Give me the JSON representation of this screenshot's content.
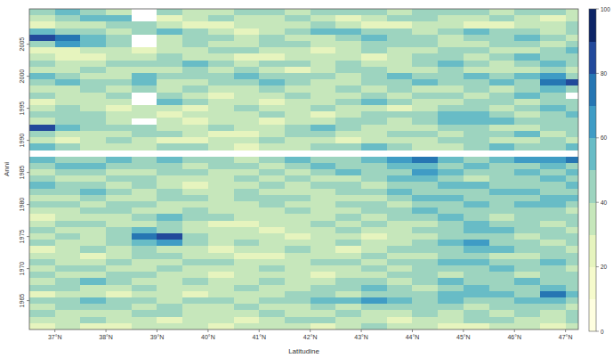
{
  "chart_data": {
    "type": "heatmap",
    "x_label": "Latitudine",
    "y_label": "Anni",
    "x": [
      36.75,
      37.25,
      37.75,
      38.25,
      38.75,
      39.25,
      39.75,
      40.25,
      40.75,
      41.25,
      41.75,
      42.25,
      42.75,
      43.25,
      43.75,
      44.25,
      44.75,
      45.25,
      45.75,
      46.25,
      46.75,
      47.25
    ],
    "y": [
      2010,
      2009,
      2008,
      2007,
      2006,
      2005,
      2004,
      2003,
      2002,
      2001,
      2000,
      1999,
      1998,
      1997,
      1996,
      1995,
      1994,
      1993,
      1992,
      1991,
      1990,
      1989,
      1988,
      1987,
      1986,
      1985,
      1984,
      1983,
      1982,
      1981,
      1980,
      1979,
      1978,
      1977,
      1976,
      1975,
      1974,
      1973,
      1972,
      1971,
      1970,
      1969,
      1968,
      1967,
      1966,
      1965,
      1964,
      1963,
      1962,
      1961
    ],
    "values": [
      [
        45,
        55,
        45,
        35,
        null,
        45,
        35,
        35,
        45,
        45,
        35,
        45,
        45,
        45,
        35,
        45,
        45,
        45,
        35,
        45,
        45,
        35
      ],
      [
        35,
        45,
        55,
        55,
        null,
        25,
        35,
        45,
        35,
        35,
        45,
        35,
        25,
        35,
        45,
        45,
        35,
        35,
        45,
        35,
        25,
        35
      ],
      [
        25,
        35,
        35,
        45,
        45,
        35,
        25,
        25,
        35,
        35,
        35,
        45,
        35,
        25,
        25,
        35,
        35,
        25,
        25,
        35,
        35,
        45
      ],
      [
        55,
        45,
        45,
        35,
        45,
        55,
        45,
        35,
        25,
        35,
        45,
        55,
        55,
        45,
        45,
        35,
        45,
        55,
        45,
        45,
        35,
        45
      ],
      [
        85,
        75,
        55,
        45,
        null,
        35,
        45,
        45,
        35,
        45,
        35,
        35,
        45,
        55,
        45,
        45,
        35,
        45,
        45,
        55,
        45,
        35
      ],
      [
        45,
        65,
        55,
        45,
        null,
        35,
        45,
        35,
        35,
        45,
        45,
        35,
        35,
        45,
        45,
        45,
        35,
        35,
        45,
        45,
        35,
        45
      ],
      [
        25,
        25,
        35,
        35,
        25,
        35,
        35,
        45,
        45,
        35,
        35,
        25,
        35,
        45,
        35,
        35,
        45,
        45,
        35,
        35,
        45,
        55
      ],
      [
        35,
        25,
        25,
        35,
        35,
        45,
        35,
        35,
        25,
        25,
        35,
        35,
        35,
        25,
        35,
        45,
        45,
        35,
        45,
        55,
        45,
        45
      ],
      [
        45,
        35,
        35,
        45,
        45,
        45,
        55,
        45,
        35,
        45,
        45,
        35,
        45,
        35,
        35,
        45,
        55,
        45,
        35,
        45,
        55,
        45
      ],
      [
        35,
        35,
        45,
        35,
        35,
        35,
        45,
        35,
        45,
        35,
        25,
        35,
        45,
        45,
        35,
        35,
        45,
        35,
        35,
        35,
        45,
        35
      ],
      [
        55,
        45,
        35,
        35,
        55,
        45,
        45,
        45,
        55,
        45,
        45,
        45,
        35,
        45,
        55,
        45,
        45,
        55,
        45,
        55,
        65,
        45
      ],
      [
        45,
        55,
        45,
        45,
        55,
        35,
        35,
        45,
        45,
        55,
        45,
        35,
        35,
        45,
        45,
        55,
        45,
        45,
        55,
        45,
        75,
        85
      ],
      [
        35,
        35,
        45,
        35,
        45,
        35,
        45,
        35,
        35,
        45,
        35,
        35,
        45,
        35,
        45,
        35,
        35,
        45,
        35,
        45,
        55,
        45
      ],
      [
        45,
        35,
        35,
        45,
        null,
        45,
        35,
        25,
        35,
        35,
        45,
        35,
        35,
        45,
        35,
        45,
        45,
        35,
        45,
        55,
        45,
        null
      ],
      [
        25,
        35,
        35,
        35,
        null,
        55,
        45,
        35,
        35,
        25,
        35,
        35,
        45,
        55,
        45,
        35,
        35,
        45,
        45,
        35,
        45,
        45
      ],
      [
        35,
        45,
        35,
        25,
        35,
        35,
        25,
        35,
        45,
        35,
        35,
        45,
        35,
        35,
        25,
        35,
        45,
        45,
        35,
        45,
        55,
        45
      ],
      [
        45,
        45,
        45,
        35,
        35,
        25,
        35,
        35,
        35,
        45,
        35,
        25,
        35,
        45,
        45,
        45,
        55,
        55,
        45,
        35,
        45,
        55
      ],
      [
        35,
        45,
        45,
        35,
        null,
        35,
        25,
        35,
        35,
        25,
        35,
        35,
        45,
        45,
        35,
        45,
        55,
        55,
        55,
        45,
        45,
        45
      ],
      [
        85,
        55,
        45,
        45,
        45,
        35,
        35,
        45,
        35,
        35,
        45,
        55,
        45,
        35,
        35,
        35,
        45,
        45,
        35,
        35,
        45,
        45
      ],
      [
        45,
        35,
        35,
        35,
        45,
        45,
        35,
        25,
        25,
        35,
        45,
        45,
        35,
        35,
        45,
        45,
        35,
        45,
        45,
        55,
        35,
        45
      ],
      [
        35,
        25,
        35,
        45,
        35,
        25,
        25,
        35,
        35,
        45,
        35,
        35,
        25,
        35,
        35,
        35,
        45,
        45,
        35,
        35,
        45,
        35
      ],
      [
        55,
        45,
        35,
        35,
        35,
        45,
        45,
        35,
        25,
        35,
        35,
        45,
        45,
        55,
        45,
        35,
        35,
        45,
        55,
        45,
        45,
        55
      ],
      [
        null,
        null,
        null,
        null,
        null,
        null,
        null,
        null,
        null,
        null,
        null,
        null,
        null,
        null,
        null,
        null,
        null,
        null,
        null,
        null,
        null,
        null
      ],
      [
        55,
        45,
        45,
        55,
        45,
        55,
        45,
        45,
        35,
        45,
        55,
        45,
        45,
        55,
        65,
        75,
        55,
        45,
        55,
        65,
        65,
        75
      ],
      [
        45,
        55,
        55,
        45,
        45,
        45,
        35,
        45,
        45,
        35,
        45,
        55,
        45,
        45,
        55,
        55,
        45,
        55,
        45,
        45,
        55,
        45
      ],
      [
        35,
        45,
        45,
        35,
        35,
        45,
        45,
        35,
        35,
        45,
        35,
        45,
        55,
        45,
        45,
        65,
        55,
        45,
        45,
        55,
        45,
        55
      ],
      [
        45,
        35,
        35,
        45,
        45,
        35,
        35,
        35,
        45,
        35,
        45,
        35,
        35,
        45,
        55,
        55,
        45,
        35,
        45,
        45,
        55,
        45
      ],
      [
        55,
        45,
        45,
        35,
        45,
        35,
        25,
        35,
        35,
        45,
        35,
        45,
        45,
        35,
        45,
        45,
        55,
        55,
        45,
        45,
        45,
        55
      ],
      [
        45,
        45,
        55,
        45,
        35,
        45,
        35,
        35,
        45,
        35,
        35,
        35,
        45,
        45,
        55,
        45,
        45,
        45,
        55,
        55,
        45,
        45
      ],
      [
        35,
        35,
        45,
        35,
        35,
        45,
        45,
        35,
        45,
        45,
        45,
        35,
        35,
        35,
        45,
        55,
        55,
        45,
        45,
        45,
        55,
        55
      ],
      [
        45,
        45,
        35,
        45,
        45,
        35,
        35,
        35,
        35,
        45,
        35,
        35,
        45,
        45,
        35,
        45,
        45,
        55,
        45,
        55,
        55,
        45
      ],
      [
        35,
        35,
        45,
        45,
        35,
        35,
        45,
        35,
        35,
        35,
        45,
        35,
        35,
        45,
        45,
        55,
        45,
        45,
        45,
        45,
        45,
        35
      ],
      [
        25,
        35,
        35,
        35,
        45,
        55,
        45,
        45,
        35,
        35,
        35,
        35,
        45,
        35,
        45,
        45,
        55,
        45,
        35,
        45,
        45,
        45
      ],
      [
        35,
        45,
        45,
        35,
        35,
        45,
        35,
        25,
        25,
        35,
        35,
        45,
        35,
        45,
        35,
        35,
        45,
        55,
        45,
        45,
        35,
        45
      ],
      [
        45,
        35,
        35,
        45,
        55,
        45,
        35,
        35,
        35,
        25,
        35,
        35,
        45,
        35,
        35,
        45,
        45,
        55,
        55,
        45,
        45,
        35
      ],
      [
        35,
        45,
        35,
        45,
        75,
        85,
        45,
        35,
        35,
        35,
        25,
        35,
        35,
        25,
        35,
        35,
        45,
        45,
        45,
        35,
        45,
        45
      ],
      [
        45,
        35,
        35,
        45,
        55,
        65,
        45,
        35,
        45,
        35,
        35,
        35,
        45,
        35,
        35,
        45,
        55,
        65,
        45,
        45,
        35,
        45
      ],
      [
        25,
        35,
        45,
        35,
        45,
        35,
        35,
        25,
        35,
        35,
        45,
        35,
        25,
        35,
        45,
        45,
        45,
        55,
        55,
        45,
        45,
        35
      ],
      [
        35,
        35,
        25,
        35,
        45,
        45,
        35,
        35,
        25,
        25,
        35,
        35,
        35,
        45,
        35,
        35,
        45,
        45,
        35,
        35,
        45,
        45
      ],
      [
        45,
        35,
        35,
        45,
        35,
        35,
        45,
        45,
        35,
        35,
        35,
        45,
        45,
        35,
        45,
        45,
        55,
        55,
        45,
        45,
        55,
        45
      ],
      [
        35,
        45,
        45,
        35,
        35,
        45,
        35,
        35,
        35,
        45,
        35,
        35,
        35,
        45,
        35,
        45,
        45,
        45,
        55,
        45,
        45,
        35
      ],
      [
        45,
        35,
        35,
        45,
        45,
        35,
        35,
        25,
        35,
        35,
        35,
        25,
        35,
        35,
        45,
        45,
        35,
        45,
        45,
        35,
        45,
        45
      ],
      [
        35,
        45,
        55,
        45,
        35,
        35,
        45,
        35,
        35,
        45,
        35,
        35,
        45,
        45,
        35,
        45,
        55,
        45,
        45,
        55,
        45,
        45
      ],
      [
        45,
        45,
        35,
        35,
        45,
        35,
        35,
        35,
        45,
        35,
        35,
        45,
        45,
        55,
        45,
        35,
        45,
        55,
        45,
        45,
        55,
        45
      ],
      [
        25,
        35,
        35,
        25,
        35,
        35,
        25,
        35,
        35,
        35,
        45,
        45,
        35,
        45,
        45,
        45,
        55,
        55,
        55,
        45,
        75,
        55
      ],
      [
        45,
        45,
        55,
        45,
        45,
        35,
        45,
        45,
        35,
        45,
        45,
        55,
        55,
        65,
        55,
        45,
        55,
        45,
        45,
        55,
        55,
        45
      ],
      [
        35,
        45,
        45,
        45,
        35,
        45,
        35,
        35,
        45,
        35,
        35,
        45,
        35,
        45,
        45,
        45,
        45,
        35,
        45,
        45,
        45,
        35
      ],
      [
        45,
        35,
        35,
        35,
        45,
        45,
        35,
        35,
        35,
        45,
        35,
        35,
        45,
        35,
        35,
        45,
        35,
        45,
        35,
        45,
        35,
        45
      ],
      [
        35,
        35,
        45,
        35,
        35,
        25,
        35,
        35,
        25,
        35,
        45,
        45,
        35,
        35,
        25,
        35,
        35,
        45,
        45,
        35,
        35,
        45
      ],
      [
        25,
        35,
        25,
        25,
        35,
        35,
        35,
        25,
        35,
        35,
        35,
        25,
        35,
        45,
        35,
        35,
        25,
        25,
        35,
        35,
        25,
        35
      ]
    ],
    "xlim": [
      36.5,
      47.25
    ],
    "xticks": [
      {
        "value": 37,
        "label": "37°N"
      },
      {
        "value": 38,
        "label": "38°N"
      },
      {
        "value": 39,
        "label": "39°N"
      },
      {
        "value": 40,
        "label": "40°N"
      },
      {
        "value": 41,
        "label": "41°N"
      },
      {
        "value": 42,
        "label": "42°N"
      },
      {
        "value": 43,
        "label": "43°N"
      },
      {
        "value": 44,
        "label": "44°N"
      },
      {
        "value": 45,
        "label": "45°N"
      },
      {
        "value": 46,
        "label": "46°N"
      },
      {
        "value": 47,
        "label": "47°N"
      }
    ],
    "ylim": [
      1960.5,
      2010.5
    ],
    "yticks": [
      1965,
      1970,
      1975,
      1980,
      1985,
      1990,
      1995,
      2000,
      2005
    ],
    "color_range": [
      0,
      100
    ],
    "color_ticks": [
      0,
      20,
      40,
      60,
      80,
      100
    ],
    "colors": [
      "#ffffe0",
      "#f6fbcc",
      "#e6f4be",
      "#c6e7bb",
      "#9dd4bf",
      "#68bcc6",
      "#3f9cc5",
      "#2676b3",
      "#22499b",
      "#0c2466"
    ]
  }
}
